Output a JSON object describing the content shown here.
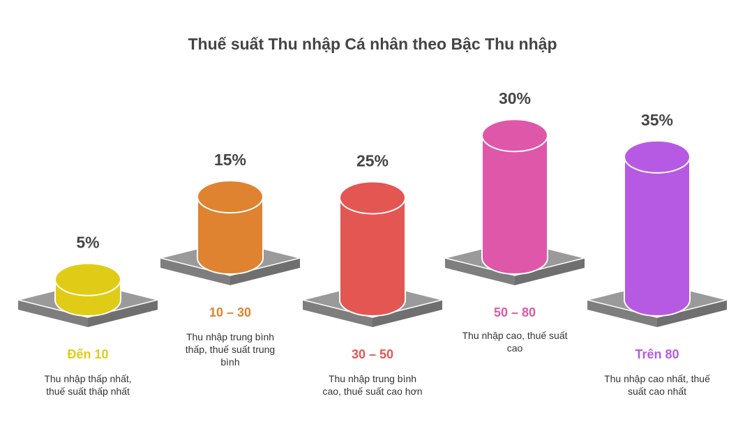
{
  "chart_data": {
    "type": "bar",
    "title": "Thuế suất Thu nhập Cá nhân theo Bậc Thu nhập",
    "categories": [
      "Đến 10",
      "10 – 30",
      "30 – 50",
      "50 – 80",
      "Trên 80"
    ],
    "values": [
      5,
      15,
      25,
      30,
      35
    ],
    "value_labels": [
      "5%",
      "15%",
      "25%",
      "30%",
      "35%"
    ],
    "descriptions": [
      [
        "Thu nhập thấp nhất,",
        "thuế suất thấp nhất"
      ],
      [
        "Thu nhập trung bình",
        "thấp, thuế suất trung",
        "bình"
      ],
      [
        "Thu nhập trung bình",
        "cao, thuế suất cao hơn"
      ],
      [
        "Thu nhập cao, thuế suất",
        "cao"
      ],
      [
        "Thu nhập cao nhất, thuế",
        "suất cao nhất"
      ]
    ],
    "colors": [
      "#E0CC16",
      "#DF8330",
      "#E45652",
      "#DF57A9",
      "#B75AE3"
    ],
    "pedestal_color": "#9A9A9A",
    "value_axis": "percent"
  }
}
